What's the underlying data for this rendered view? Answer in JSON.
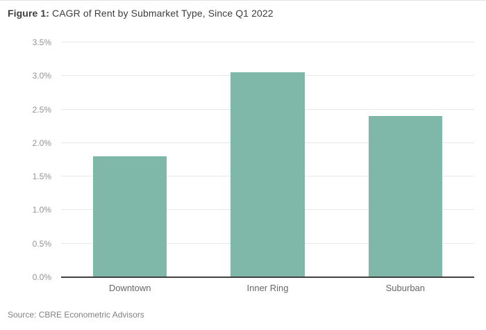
{
  "figure": {
    "title_prefix": "Figure 1:",
    "title_rest": " CAGR of Rent by Submarket Type, Since Q1 2022",
    "source": "Source: CBRE Econometric Advisors"
  },
  "chart_data": {
    "type": "bar",
    "title": "CAGR of Rent by Submarket Type, Since Q1 2022",
    "categories": [
      "Downtown",
      "Inner Ring",
      "Suburban"
    ],
    "values": [
      1.8,
      3.05,
      2.4
    ],
    "value_unit": "%",
    "xlabel": "",
    "ylabel": "",
    "ylim": [
      0,
      3.5
    ],
    "yticks": {
      "values": [
        0,
        0.5,
        1.0,
        1.5,
        2.0,
        2.5,
        3.0,
        3.5
      ],
      "labels": [
        "0.0%",
        "0.5%",
        "1.0%",
        "1.5%",
        "2.0%",
        "2.5%",
        "3.0%",
        "3.5%"
      ]
    },
    "grid": true,
    "legend": false,
    "colors": {
      "bar": "#7fb7a9",
      "grid": "#e8e8e8",
      "axis_line": "#3f3f3f",
      "ytick_label": "#929292",
      "category_label": "#676767"
    }
  }
}
